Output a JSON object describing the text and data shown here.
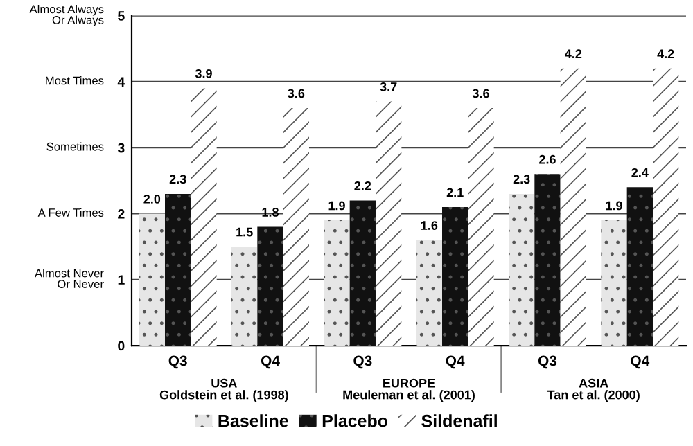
{
  "chart_data": {
    "type": "bar",
    "categories": [
      "Q3",
      "Q4",
      "Q3",
      "Q4",
      "Q3",
      "Q4"
    ],
    "series": [
      {
        "name": "Baseline",
        "color": "#e6e6e6",
        "values": [
          2.0,
          1.5,
          1.9,
          1.6,
          2.3,
          1.9
        ],
        "value_labels": [
          "2.0",
          "1.5",
          "1.9",
          "1.6",
          "2.3",
          "1.9"
        ]
      },
      {
        "name": "Placebo",
        "color": "#111111",
        "values": [
          2.3,
          1.8,
          2.2,
          2.1,
          2.6,
          2.4
        ],
        "value_labels": [
          "2.3",
          "1.8",
          "2.2",
          "2.1",
          "2.6",
          "2.4"
        ]
      },
      {
        "name": "Sildenafil",
        "color": "#ffffff",
        "values": [
          3.9,
          3.6,
          3.7,
          3.6,
          4.2,
          4.2
        ],
        "value_labels": [
          "3.9",
          "3.6",
          "3.7",
          "3.6",
          "4.2",
          "4.2"
        ]
      }
    ],
    "ylim": [
      0,
      5
    ],
    "yticks": [
      0,
      1,
      2,
      3,
      4,
      5
    ],
    "annotations": [
      "USA\nGoldstein et al. (1998)",
      "EUROPE\nMeuleman et al. (2001)",
      "ASIA\nTan et al. (2000)",
      "Almost Never\nOr Never",
      "A Few Times",
      "Sometimes",
      "Most Times",
      "Almost Always\nOr Always"
    ],
    "grid": "y",
    "legend": "bottom"
  }
}
